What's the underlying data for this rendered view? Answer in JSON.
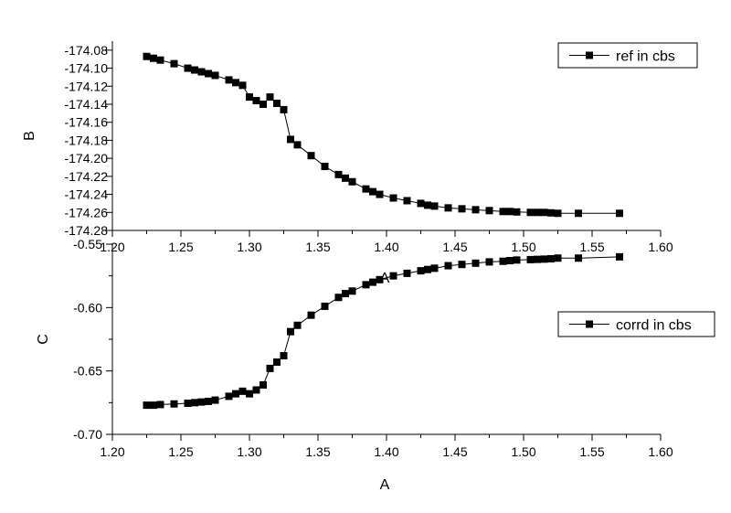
{
  "chart_data": [
    {
      "type": "line",
      "title": "",
      "xlabel": "A",
      "ylabel": "B",
      "xlim": [
        1.2,
        1.6
      ],
      "ylim": [
        -174.28,
        -174.07
      ],
      "x_ticks": [
        "1.20",
        "1.25",
        "1.30",
        "1.35",
        "1.40",
        "1.45",
        "1.50",
        "1.55",
        "1.60"
      ],
      "y_ticks": [
        "-174.08",
        "-174.10",
        "-174.12",
        "-174.14",
        "-174.16",
        "-174.18",
        "-174.20",
        "-174.22",
        "-174.24",
        "-174.26",
        "-174.28"
      ],
      "legend_position": "top-right",
      "marker": "square",
      "color": "#000000",
      "series": [
        {
          "name": "ref in cbs",
          "x": [
            1.225,
            1.23,
            1.235,
            1.245,
            1.255,
            1.26,
            1.265,
            1.27,
            1.275,
            1.285,
            1.29,
            1.295,
            1.3,
            1.305,
            1.31,
            1.315,
            1.32,
            1.325,
            1.33,
            1.335,
            1.345,
            1.355,
            1.365,
            1.37,
            1.375,
            1.385,
            1.39,
            1.395,
            1.405,
            1.415,
            1.425,
            1.43,
            1.435,
            1.445,
            1.455,
            1.465,
            1.475,
            1.485,
            1.49,
            1.495,
            1.505,
            1.51,
            1.515,
            1.52,
            1.525,
            1.54,
            1.57
          ],
          "y": [
            -174.087,
            -174.089,
            -174.091,
            -174.095,
            -174.1,
            -174.102,
            -174.104,
            -174.106,
            -174.108,
            -174.113,
            -174.116,
            -174.119,
            -174.132,
            -174.136,
            -174.14,
            -174.132,
            -174.139,
            -174.146,
            -174.179,
            -174.185,
            -174.197,
            -174.209,
            -174.218,
            -174.222,
            -174.226,
            -174.234,
            -174.237,
            -174.24,
            -174.244,
            -174.247,
            -174.25,
            -174.252,
            -174.253,
            -174.255,
            -174.256,
            -174.257,
            -174.258,
            -174.259,
            -174.259,
            -174.2595,
            -174.26,
            -174.26,
            -174.26,
            -174.2605,
            -174.261,
            -174.261,
            -174.261
          ]
        }
      ]
    },
    {
      "type": "line",
      "title": "",
      "xlabel": "A",
      "ylabel": "C",
      "xlim": [
        1.2,
        1.6
      ],
      "ylim": [
        -0.7,
        -0.55
      ],
      "x_ticks": [
        "1.20",
        "1.25",
        "1.30",
        "1.35",
        "1.40",
        "1.45",
        "1.50",
        "1.55",
        "1.60"
      ],
      "y_ticks": [
        "-0.55",
        "-0.60",
        "-0.65",
        "-0.70"
      ],
      "legend_position": "right",
      "marker": "square",
      "color": "#000000",
      "series": [
        {
          "name": "corrd in cbs",
          "x": [
            1.225,
            1.23,
            1.235,
            1.245,
            1.255,
            1.26,
            1.265,
            1.27,
            1.275,
            1.285,
            1.29,
            1.295,
            1.3,
            1.305,
            1.31,
            1.315,
            1.32,
            1.325,
            1.33,
            1.335,
            1.345,
            1.355,
            1.365,
            1.37,
            1.375,
            1.385,
            1.39,
            1.395,
            1.405,
            1.415,
            1.425,
            1.43,
            1.435,
            1.445,
            1.455,
            1.465,
            1.475,
            1.485,
            1.49,
            1.495,
            1.505,
            1.51,
            1.515,
            1.52,
            1.525,
            1.54,
            1.57
          ],
          "y": [
            -0.677,
            -0.677,
            -0.6765,
            -0.676,
            -0.6755,
            -0.675,
            -0.6745,
            -0.674,
            -0.673,
            -0.67,
            -0.668,
            -0.666,
            -0.668,
            -0.665,
            -0.661,
            -0.648,
            -0.643,
            -0.638,
            -0.619,
            -0.614,
            -0.606,
            -0.599,
            -0.592,
            -0.589,
            -0.587,
            -0.582,
            -0.58,
            -0.578,
            -0.575,
            -0.573,
            -0.571,
            -0.57,
            -0.569,
            -0.567,
            -0.566,
            -0.565,
            -0.564,
            -0.5635,
            -0.563,
            -0.5625,
            -0.5622,
            -0.562,
            -0.5618,
            -0.5615,
            -0.561,
            -0.561,
            -0.56
          ]
        }
      ]
    }
  ],
  "extra_label": "A"
}
